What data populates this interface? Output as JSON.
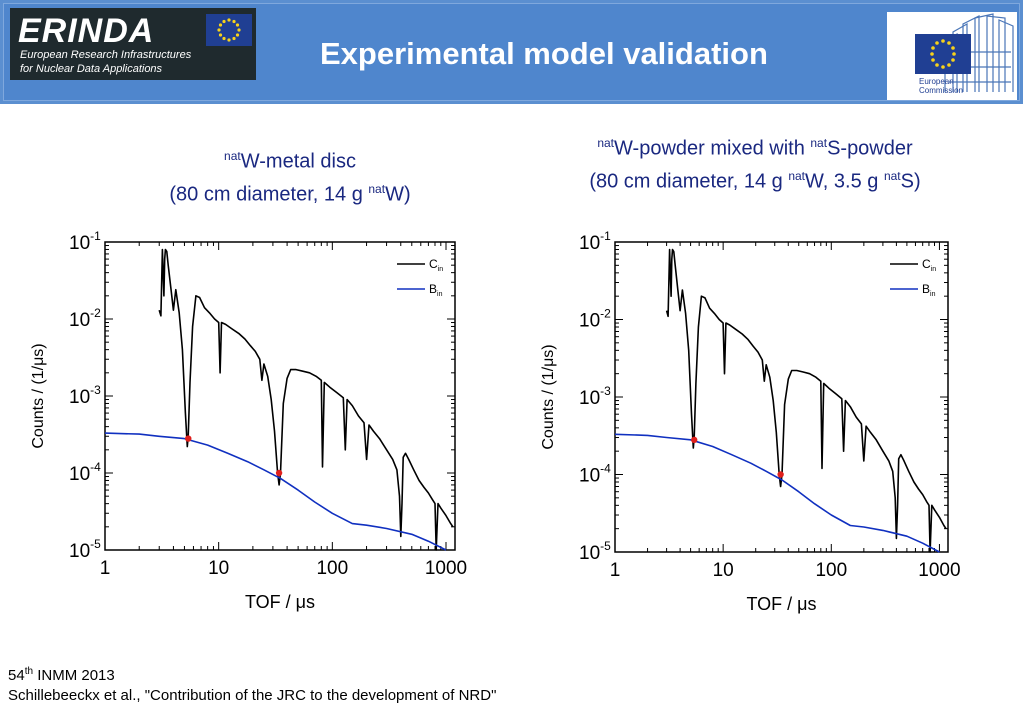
{
  "header": {
    "logo_word": "ERINDA",
    "logo_line1": "European Research Infrastructures",
    "logo_line2": "for Nuclear Data Applications",
    "title": "Experimental model validation",
    "ec_line1": "European",
    "ec_line2": "Commission"
  },
  "panels": [
    {
      "title_sup1": "nat",
      "title_line1_rest": "W-metal disc",
      "title_line2_pre": "(80 cm diameter, 14 g ",
      "title_line2_sup": "nat",
      "title_line2_post": "W)"
    },
    {
      "title_sup1": "nat",
      "title_line1_mid": "W-powder mixed with ",
      "title_line1_sup2": "nat",
      "title_line1_rest": "S-powder",
      "title_line2_pre": "(80 cm diameter, 14 g ",
      "title_line2_sup": "nat",
      "title_line2_mid": "W, 3.5 g ",
      "title_line2_sup2": "nat",
      "title_line2_post": "S)"
    }
  ],
  "footer": {
    "line1_pre": "54",
    "line1_sup": "th",
    "line1_post": " INMM  2013",
    "line2": "Schillebeeckx  et al., \"Contribution of the JRC to the development of NRD\""
  },
  "chart_data": [
    {
      "type": "line",
      "xlabel": "TOF / μs",
      "ylabel": "Counts / (1/μs)",
      "xscale": "log",
      "yscale": "log",
      "xlim": [
        1,
        1200
      ],
      "ylim": [
        1e-05,
        0.1
      ],
      "x_ticks": [
        "1",
        "10",
        "100",
        "1000"
      ],
      "y_ticks": [
        {
          "base": "10",
          "exp": "-1"
        },
        {
          "base": "10",
          "exp": "-2"
        },
        {
          "base": "10",
          "exp": "-3"
        },
        {
          "base": "10",
          "exp": "-4"
        },
        {
          "base": "10",
          "exp": "-5"
        }
      ],
      "legend": {
        "position": "top-right"
      },
      "series": [
        {
          "name": "C",
          "name_sub": "in",
          "color": "#000000",
          "x": [
            3.0,
            3.1,
            3.2,
            3.3,
            3.35,
            3.4,
            3.5,
            3.6,
            3.8,
            4.0,
            4.2,
            4.5,
            4.8,
            5.1,
            5.3,
            5.4,
            5.6,
            5.9,
            6.3,
            6.8,
            7.5,
            8.3,
            9.2,
            10.0,
            10.3,
            10.6,
            11.5,
            13,
            15,
            17,
            19,
            21,
            23,
            24,
            25,
            27,
            29,
            31,
            33,
            34,
            35,
            37,
            40,
            43,
            48,
            55,
            63,
            72,
            80,
            82,
            85,
            95,
            110,
            125,
            130,
            135,
            150,
            170,
            190,
            200,
            210,
            230,
            260,
            300,
            340,
            370,
            390,
            400,
            410,
            420,
            440,
            470,
            520,
            580,
            640,
            700,
            760,
            800,
            820,
            850,
            900,
            1000,
            1100,
            1150
          ],
          "y": [
            0.013,
            0.011,
            0.08,
            0.02,
            0.06,
            0.08,
            0.075,
            0.05,
            0.025,
            0.013,
            0.024,
            0.012,
            0.004,
            0.0006,
            0.00022,
            0.0003,
            0.0015,
            0.008,
            0.02,
            0.019,
            0.014,
            0.012,
            0.01,
            0.009,
            0.002,
            0.009,
            0.0085,
            0.0075,
            0.0065,
            0.0055,
            0.0045,
            0.0038,
            0.003,
            0.0016,
            0.0026,
            0.0018,
            0.0009,
            0.00035,
            0.0001,
            7e-05,
            0.0001,
            0.0008,
            0.0017,
            0.0022,
            0.0022,
            0.0021,
            0.002,
            0.0018,
            0.0016,
            0.00012,
            0.0015,
            0.0013,
            0.0011,
            0.00095,
            0.0002,
            0.0009,
            0.00075,
            0.00055,
            0.00045,
            0.00015,
            0.00042,
            0.00035,
            0.00028,
            0.0002,
            0.00015,
            0.00011,
            5e-05,
            1.5e-05,
            4e-05,
            0.00016,
            0.00018,
            0.00015,
            0.00011,
            8e-05,
            6.5e-05,
            5.5e-05,
            4.5e-05,
            4e-05,
            1e-05,
            4e-05,
            3.5e-05,
            2.8e-05,
            2.2e-05,
            2e-05
          ]
        },
        {
          "name": "B",
          "name_sub": "in",
          "color": "#1030c0",
          "x": [
            1,
            2,
            3,
            5,
            8,
            12,
            18,
            25,
            35,
            50,
            70,
            100,
            150,
            200,
            300,
            500,
            700,
            1000
          ],
          "y": [
            0.00033,
            0.00032,
            0.0003,
            0.00028,
            0.00023,
            0.00018,
            0.00014,
            0.00011,
            8.5e-05,
            6e-05,
            4.2e-05,
            3e-05,
            2.2e-05,
            2.1e-05,
            1.9e-05,
            1.6e-05,
            1.3e-05,
            1e-05
          ]
        }
      ],
      "markers": {
        "color": "#e0201c",
        "x": [
          5.4,
          34
        ],
        "y": [
          0.00028,
          0.0001
        ]
      }
    },
    {
      "type": "line",
      "xlabel": "TOF / μs",
      "ylabel": "Counts / (1/μs)",
      "xscale": "log",
      "yscale": "log",
      "xlim": [
        1,
        1200
      ],
      "ylim": [
        1e-05,
        0.1
      ],
      "x_ticks": [
        "1",
        "10",
        "100",
        "1000"
      ],
      "y_ticks": [
        {
          "base": "10",
          "exp": "-1"
        },
        {
          "base": "10",
          "exp": "-2"
        },
        {
          "base": "10",
          "exp": "-3"
        },
        {
          "base": "10",
          "exp": "-4"
        },
        {
          "base": "10",
          "exp": "-5"
        }
      ],
      "legend": {
        "position": "top-right"
      },
      "series": [
        {
          "name": "C",
          "name_sub": "in",
          "color": "#000000",
          "x": [
            3.0,
            3.1,
            3.2,
            3.3,
            3.35,
            3.4,
            3.5,
            3.6,
            3.8,
            4.0,
            4.2,
            4.5,
            4.8,
            5.1,
            5.3,
            5.4,
            5.6,
            5.9,
            6.3,
            6.8,
            7.5,
            8.3,
            9.2,
            10.0,
            10.3,
            10.6,
            11.5,
            13,
            15,
            17,
            19,
            21,
            23,
            24,
            25,
            27,
            29,
            31,
            33,
            34,
            35,
            37,
            40,
            43,
            48,
            55,
            63,
            72,
            80,
            82,
            85,
            95,
            110,
            125,
            130,
            135,
            150,
            170,
            190,
            200,
            210,
            230,
            260,
            300,
            340,
            370,
            390,
            400,
            410,
            420,
            440,
            470,
            520,
            580,
            640,
            700,
            760,
            800,
            820,
            850,
            900,
            1000,
            1100,
            1150
          ],
          "y": [
            0.013,
            0.011,
            0.08,
            0.02,
            0.06,
            0.08,
            0.075,
            0.05,
            0.025,
            0.013,
            0.024,
            0.012,
            0.004,
            0.0006,
            0.00022,
            0.0003,
            0.0015,
            0.008,
            0.02,
            0.019,
            0.014,
            0.012,
            0.01,
            0.009,
            0.002,
            0.009,
            0.0085,
            0.0075,
            0.0065,
            0.0055,
            0.0045,
            0.0038,
            0.003,
            0.0016,
            0.0026,
            0.0018,
            0.0009,
            0.00035,
            0.0001,
            7e-05,
            0.0001,
            0.0008,
            0.0017,
            0.0022,
            0.0022,
            0.0021,
            0.002,
            0.0018,
            0.0016,
            0.00012,
            0.0015,
            0.0013,
            0.0011,
            0.00095,
            0.0002,
            0.0009,
            0.00075,
            0.00055,
            0.00045,
            0.00015,
            0.00042,
            0.00035,
            0.00028,
            0.0002,
            0.00015,
            0.00011,
            5e-05,
            1.5e-05,
            4e-05,
            0.00016,
            0.00018,
            0.00015,
            0.00011,
            8e-05,
            6.5e-05,
            5.5e-05,
            4.5e-05,
            4e-05,
            1e-05,
            4e-05,
            3.5e-05,
            2.8e-05,
            2.2e-05,
            2e-05
          ]
        },
        {
          "name": "B",
          "name_sub": "in",
          "color": "#1030c0",
          "x": [
            1,
            2,
            3,
            5,
            8,
            12,
            18,
            25,
            35,
            50,
            70,
            100,
            150,
            200,
            300,
            500,
            700,
            1000
          ],
          "y": [
            0.00033,
            0.00032,
            0.0003,
            0.00028,
            0.00023,
            0.00018,
            0.00014,
            0.00011,
            8.5e-05,
            6e-05,
            4.2e-05,
            3e-05,
            2.2e-05,
            2.1e-05,
            1.9e-05,
            1.6e-05,
            1.3e-05,
            1e-05
          ]
        }
      ],
      "markers": {
        "color": "#e0201c",
        "x": [
          5.4,
          34
        ],
        "y": [
          0.00028,
          0.0001
        ]
      }
    }
  ]
}
